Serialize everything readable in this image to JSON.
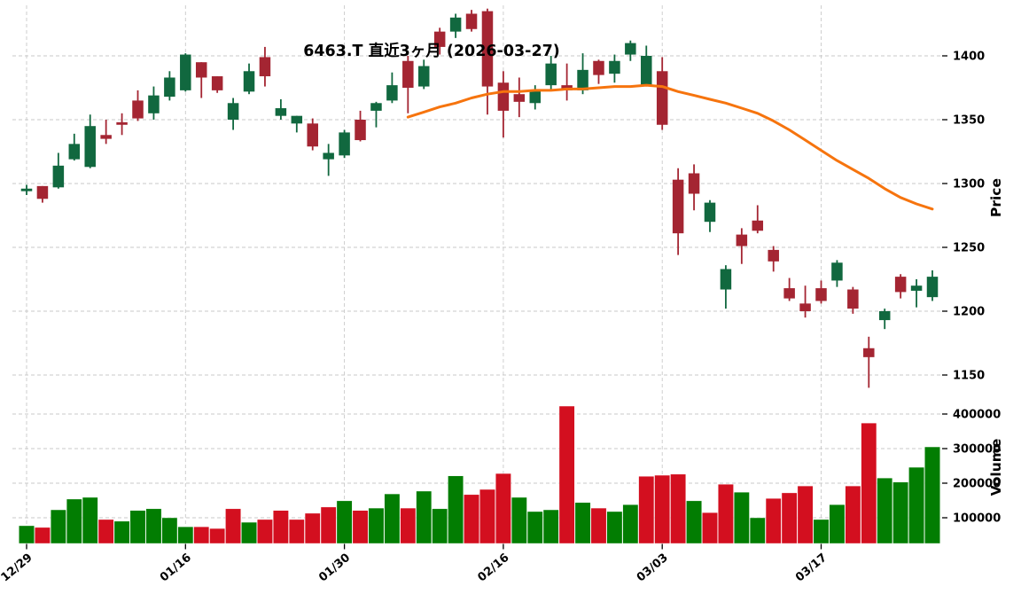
{
  "title": "6463.T 直近3ヶ月 (2026-03-27)",
  "price_axis": {
    "label": "Price",
    "ticks": [
      1400,
      1350,
      1300,
      1250,
      1200,
      1150
    ]
  },
  "volume_axis": {
    "label": "Volume",
    "ticks": [
      400000,
      300000,
      200000,
      100000
    ]
  },
  "x_axis": {
    "tick_labels": [
      "12/29",
      "01/16",
      "01/30",
      "02/16",
      "03/03",
      "03/17"
    ],
    "tick_indices": [
      0,
      10,
      20,
      30,
      40,
      50
    ]
  },
  "colors": {
    "candle_up": "#11683f",
    "candle_down": "#a42532",
    "volume_up": "#027d02",
    "volume_down": "#d30f1f",
    "ma_line": "#f6740e",
    "grid": "#c9c9c9",
    "text": "#000000",
    "background": "#ffffff"
  },
  "chart_data": {
    "type": "candlestick",
    "panels": [
      "price",
      "volume"
    ],
    "price_ylim": [
      1135,
      1440
    ],
    "volume_ylim": [
      25000,
      430000
    ],
    "grid": true,
    "candles_ohlcv": [
      [
        1294,
        1299,
        1291,
        1296,
        77000
      ],
      [
        1298,
        1298,
        1285,
        1288,
        72000
      ],
      [
        1297,
        1324,
        1296,
        1314,
        123000
      ],
      [
        1319,
        1339,
        1318,
        1331,
        154000
      ],
      [
        1313,
        1354,
        1312,
        1345,
        159000
      ],
      [
        1338,
        1350,
        1331,
        1335,
        95000
      ],
      [
        1348,
        1355,
        1338,
        1346,
        90000
      ],
      [
        1365,
        1373,
        1349,
        1351,
        121000
      ],
      [
        1355,
        1376,
        1350,
        1369,
        126000
      ],
      [
        1368,
        1388,
        1365,
        1383,
        100000
      ],
      [
        1373,
        1402,
        1372,
        1401,
        74000
      ],
      [
        1395,
        1395,
        1367,
        1383,
        74000
      ],
      [
        1384,
        1384,
        1371,
        1373,
        69000
      ],
      [
        1350,
        1367,
        1342,
        1363,
        126000
      ],
      [
        1372,
        1394,
        1370,
        1388,
        87000
      ],
      [
        1399,
        1407,
        1376,
        1384,
        95000
      ],
      [
        1353,
        1366,
        1350,
        1359,
        121000
      ],
      [
        1347,
        1353,
        1340,
        1353,
        95000
      ],
      [
        1347,
        1351,
        1326,
        1329,
        113000
      ],
      [
        1319,
        1331,
        1306,
        1324,
        131000
      ],
      [
        1322,
        1342,
        1320,
        1340,
        149000
      ],
      [
        1350,
        1357,
        1333,
        1334,
        121000
      ],
      [
        1357,
        1364,
        1344,
        1363,
        128000
      ],
      [
        1365,
        1387,
        1363,
        1377,
        169000
      ],
      [
        1396,
        1400,
        1355,
        1375,
        128000
      ],
      [
        1376,
        1397,
        1374,
        1392,
        177000
      ],
      [
        1419,
        1422,
        1401,
        1407,
        126000
      ],
      [
        1419,
        1433,
        1414,
        1430,
        221000
      ],
      [
        1433,
        1436,
        1419,
        1421,
        167000
      ],
      [
        1435,
        1437,
        1354,
        1376,
        182000
      ],
      [
        1379,
        1388,
        1336,
        1357,
        228000
      ],
      [
        1370,
        1383,
        1352,
        1364,
        159000
      ],
      [
        1363,
        1377,
        1358,
        1373,
        118000
      ],
      [
        1377,
        1400,
        1373,
        1394,
        123000
      ],
      [
        1377,
        1394,
        1365,
        1373,
        423000
      ],
      [
        1373,
        1402,
        1370,
        1389,
        144000
      ],
      [
        1396,
        1397,
        1378,
        1385,
        128000
      ],
      [
        1386,
        1401,
        1379,
        1396,
        118000
      ],
      [
        1401,
        1412,
        1396,
        1410,
        138000
      ],
      [
        1377,
        1408,
        1376,
        1400,
        220000
      ],
      [
        1388,
        1399,
        1342,
        1346,
        223000
      ],
      [
        1303,
        1312,
        1244,
        1261,
        226000
      ],
      [
        1308,
        1315,
        1279,
        1292,
        149000
      ],
      [
        1270,
        1287,
        1262,
        1285,
        115000
      ],
      [
        1217,
        1236,
        1202,
        1233,
        197000
      ],
      [
        1260,
        1265,
        1237,
        1251,
        174000
      ],
      [
        1271,
        1283,
        1261,
        1263,
        100000
      ],
      [
        1248,
        1251,
        1231,
        1239,
        156000
      ],
      [
        1218,
        1226,
        1208,
        1210,
        172000
      ],
      [
        1206,
        1220,
        1195,
        1200,
        192000
      ],
      [
        1218,
        1224,
        1206,
        1208,
        95000
      ],
      [
        1224,
        1240,
        1219,
        1238,
        138000
      ],
      [
        1217,
        1219,
        1198,
        1202,
        192000
      ],
      [
        1171,
        1180,
        1140,
        1164,
        374000
      ],
      [
        1193,
        1202,
        1186,
        1200,
        215000
      ],
      [
        1227,
        1229,
        1210,
        1215,
        203000
      ],
      [
        1216,
        1225,
        1203,
        1220,
        246000
      ],
      [
        1211,
        1232,
        1208,
        1227,
        305000
      ]
    ],
    "ma_line_points": [
      [
        24,
        1352
      ],
      [
        25,
        1356
      ],
      [
        26,
        1360
      ],
      [
        27,
        1363
      ],
      [
        28,
        1367
      ],
      [
        29,
        1370
      ],
      [
        30,
        1372
      ],
      [
        31,
        1372
      ],
      [
        32,
        1373
      ],
      [
        33,
        1373
      ],
      [
        34,
        1374
      ],
      [
        35,
        1374
      ],
      [
        36,
        1375
      ],
      [
        37,
        1376
      ],
      [
        38,
        1376
      ],
      [
        39,
        1377
      ],
      [
        40,
        1376
      ],
      [
        41,
        1372
      ],
      [
        42,
        1369
      ],
      [
        43,
        1366
      ],
      [
        44,
        1363
      ],
      [
        45,
        1359
      ],
      [
        46,
        1355
      ],
      [
        47,
        1349
      ],
      [
        48,
        1342
      ],
      [
        49,
        1334
      ],
      [
        50,
        1326
      ],
      [
        51,
        1318
      ],
      [
        52,
        1311
      ],
      [
        53,
        1304
      ],
      [
        54,
        1296
      ],
      [
        55,
        1289
      ],
      [
        56,
        1284
      ],
      [
        57,
        1280
      ]
    ]
  }
}
